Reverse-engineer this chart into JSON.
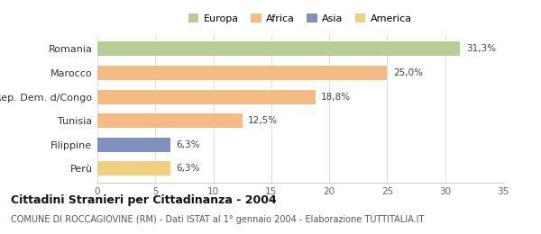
{
  "categories": [
    "Perù",
    "Filippine",
    "Tunisia",
    "Rep. Dem. d/Congo",
    "Marocco",
    "Romania"
  ],
  "values": [
    6.3,
    6.3,
    12.5,
    18.8,
    25.0,
    31.3
  ],
  "bar_colors": [
    "#f0d080",
    "#8090c0",
    "#f5bb85",
    "#f5bb85",
    "#f5bb85",
    "#b8cc95"
  ],
  "labels": [
    "6,3%",
    "6,3%",
    "12,5%",
    "18,8%",
    "25,0%",
    "31,3%"
  ],
  "legend_items": [
    {
      "label": "Europa",
      "color": "#b8cc95"
    },
    {
      "label": "Africa",
      "color": "#f5bb85"
    },
    {
      "label": "Asia",
      "color": "#8090c0"
    },
    {
      "label": "America",
      "color": "#f0d080"
    }
  ],
  "xlim": [
    0,
    35
  ],
  "xticks": [
    0,
    5,
    10,
    15,
    20,
    25,
    30,
    35
  ],
  "title": "Cittadini Stranieri per Cittadinanza - 2004",
  "subtitle": "COMUNE DI ROCCAGIOVINE (RM) - Dati ISTAT al 1° gennaio 2004 - Elaborazione TUTTITALIA.IT",
  "title_fontsize": 9,
  "subtitle_fontsize": 7,
  "background_color": "#ffffff",
  "bar_height": 0.6
}
